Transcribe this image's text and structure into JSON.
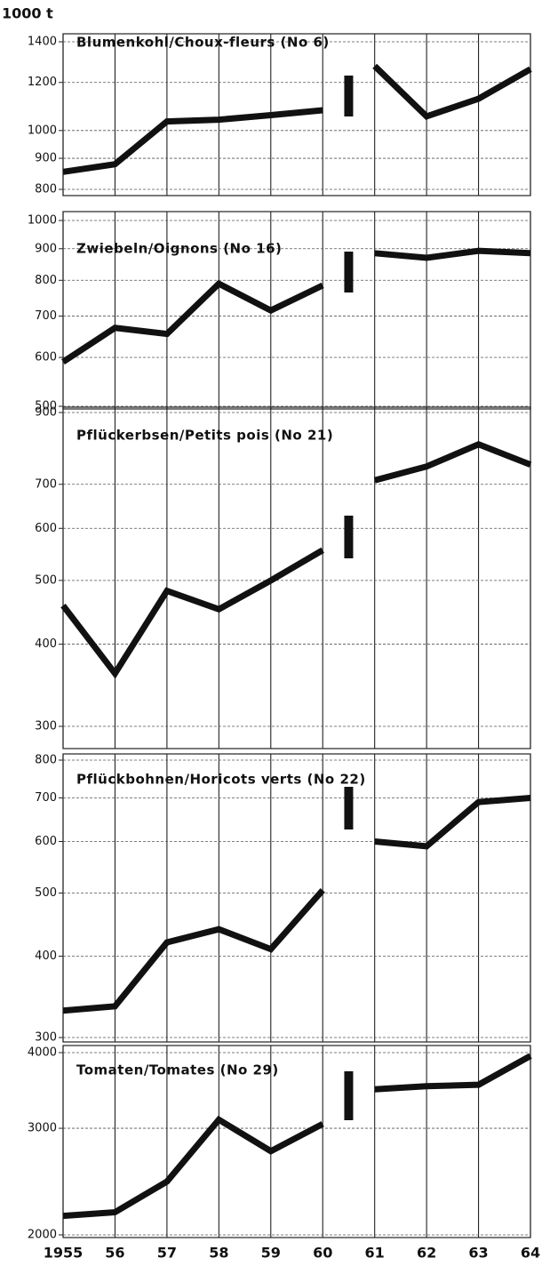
{
  "chart_data": [
    {
      "type": "line",
      "ylabel": "1000 t",
      "title": "Blumenkohl/Choux-fleurs (No 6)",
      "x": [
        1955,
        1956,
        1957,
        1958,
        1959,
        1960,
        1961,
        1962,
        1963,
        1964
      ],
      "xlim": [
        1955,
        1964
      ],
      "xticks": [
        1955,
        1956,
        1957,
        1958,
        1959,
        1960,
        1961,
        1962,
        1963,
        1964
      ],
      "values": [
        855,
        880,
        1035,
        1042,
        1060,
        1080,
        1277,
        1055,
        1128,
        1262
      ],
      "ylim": [
        800,
        1400
      ],
      "yticks": [
        800,
        900,
        1000,
        1200,
        1400
      ],
      "log_scale": true,
      "grid": true,
      "break_between": [
        1960,
        1961
      ],
      "color": "#111111"
    },
    {
      "type": "line",
      "title": "Zwiebeln/Oignons (No 16)",
      "x": [
        1955,
        1956,
        1957,
        1958,
        1959,
        1960,
        1961,
        1962,
        1963,
        1964
      ],
      "xlim": [
        1955,
        1964
      ],
      "xticks": [
        1955,
        1956,
        1957,
        1958,
        1959,
        1960,
        1961,
        1962,
        1963,
        1964
      ],
      "values": [
        590,
        670,
        655,
        790,
        715,
        785,
        885,
        870,
        893,
        885
      ],
      "ylim": [
        500,
        1000
      ],
      "yticks": [
        500,
        600,
        700,
        800,
        900,
        1000
      ],
      "log_scale": true,
      "grid": true,
      "break_between": [
        1960,
        1961
      ],
      "color": "#111111"
    },
    {
      "type": "line",
      "title": "Pflückerbsen/Petits pois (No 21)",
      "x": [
        1955,
        1956,
        1957,
        1958,
        1959,
        1960,
        1961,
        1962,
        1963,
        1964
      ],
      "xlim": [
        1955,
        1964
      ],
      "xticks": [
        1955,
        1956,
        1957,
        1958,
        1959,
        1960,
        1961,
        1962,
        1963,
        1964
      ],
      "values": [
        458,
        361,
        482,
        452,
        500,
        556,
        710,
        745,
        805,
        750
      ],
      "ylim": [
        300,
        900
      ],
      "yticks": [
        300,
        400,
        500,
        600,
        700,
        900
      ],
      "log_scale": true,
      "grid": true,
      "break_between": [
        1960,
        1961
      ],
      "color": "#111111"
    },
    {
      "type": "line",
      "title": "Pflückbohnen/Horicots verts (No 22)",
      "x": [
        1955,
        1956,
        1957,
        1958,
        1959,
        1960,
        1961,
        1962,
        1963,
        1964
      ],
      "xlim": [
        1955,
        1964
      ],
      "xticks": [
        1955,
        1956,
        1957,
        1958,
        1959,
        1960,
        1961,
        1962,
        1963,
        1964
      ],
      "values": [
        330,
        335,
        420,
        440,
        410,
        505,
        600,
        590,
        690,
        700
      ],
      "ylim": [
        300,
        800
      ],
      "yticks": [
        300,
        400,
        500,
        600,
        700,
        800
      ],
      "log_scale": true,
      "grid": true,
      "break_between": [
        1960,
        1961
      ],
      "color": "#111111"
    },
    {
      "type": "line",
      "title": "Tomaten/Tomates (No 29)",
      "x": [
        1955,
        1956,
        1957,
        1958,
        1959,
        1960,
        1961,
        1962,
        1963,
        1964
      ],
      "xlim": [
        1955,
        1964
      ],
      "xticks": [
        1955,
        {
          "value": 1956,
          "label": "56"
        },
        {
          "value": 1957,
          "label": "57"
        },
        {
          "value": 1958,
          "label": "58"
        },
        {
          "value": 1959,
          "label": "59"
        },
        {
          "value": 1960,
          "label": "60"
        },
        {
          "value": 1961,
          "label": "61"
        },
        {
          "value": 1962,
          "label": "62"
        },
        {
          "value": 1963,
          "label": "63"
        },
        {
          "value": 1964,
          "label": "64"
        }
      ],
      "values": [
        2150,
        2180,
        2450,
        3100,
        2750,
        3050,
        3480,
        3520,
        3540,
        3950
      ],
      "ylim": [
        2000,
        4000
      ],
      "yticks": [
        2000,
        3000,
        4000
      ],
      "log_scale": true,
      "grid": true,
      "break_between": [
        1960,
        1961
      ],
      "color": "#111111"
    }
  ]
}
